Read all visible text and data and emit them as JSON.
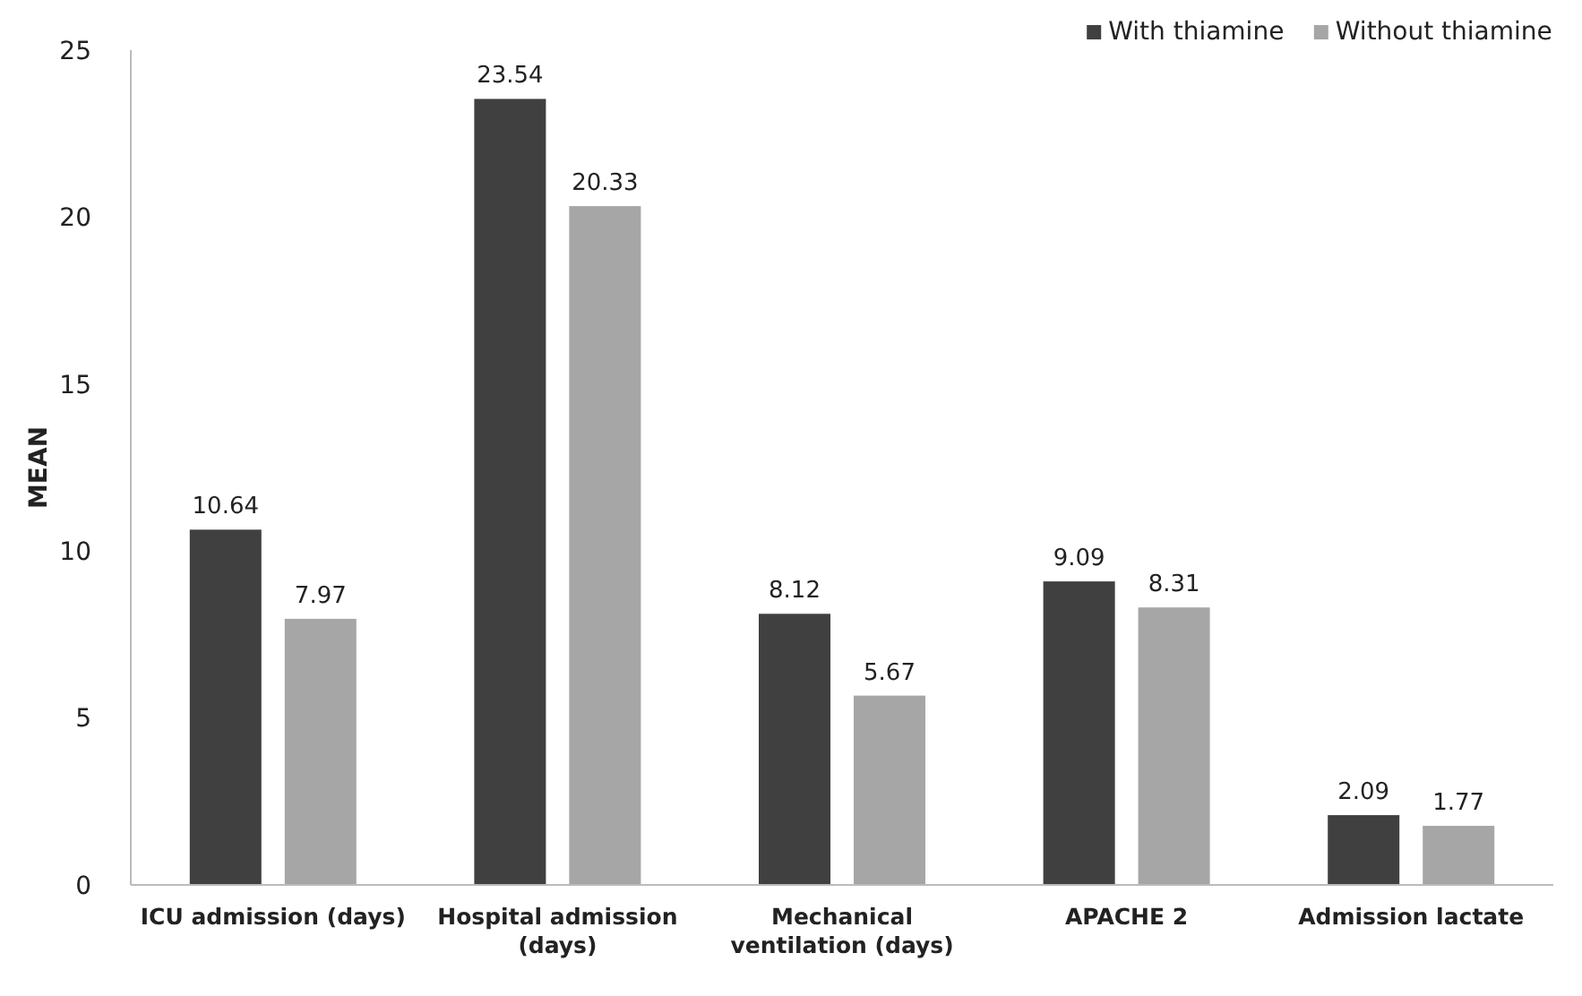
{
  "chart_data": {
    "type": "bar",
    "ylabel": "MEAN",
    "categories": [
      "ICU admission (days)",
      "Hospital admission (days)",
      "Mechanical ventilation (days)",
      "APACHE 2",
      "Admission lactate"
    ],
    "series": [
      {
        "name": "With thiamine",
        "color": "#404040",
        "values": [
          10.64,
          23.54,
          8.12,
          9.09,
          2.09
        ]
      },
      {
        "name": "Without thiamine",
        "color": "#a6a6a6",
        "values": [
          7.97,
          20.33,
          5.67,
          8.31,
          1.77
        ]
      }
    ],
    "ylim": [
      0,
      25
    ],
    "yticks": [
      0,
      5,
      10,
      15,
      20,
      25
    ],
    "grid": false,
    "legend": "top right",
    "data_labels": true
  }
}
